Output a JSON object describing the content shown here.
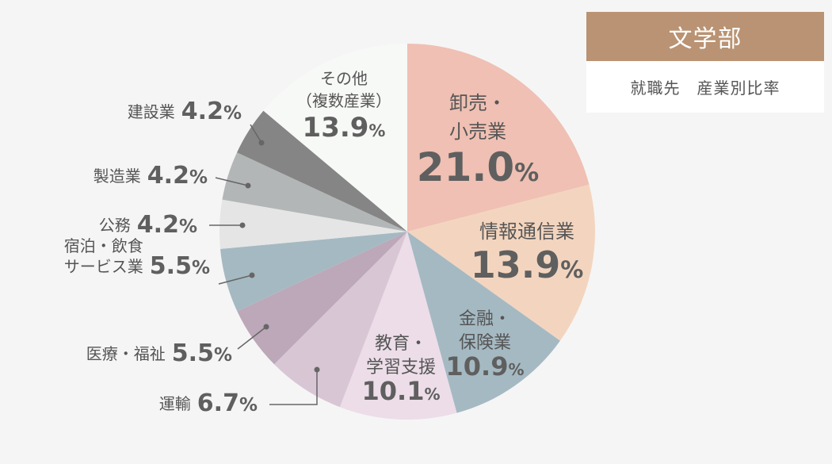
{
  "header": {
    "title": "文学部",
    "subtitle": "就職先　産業別比率"
  },
  "colors": {
    "label_text": "#555555",
    "value_text": "#5f5f5f",
    "leader_line": "#666666",
    "title_bg": "#b99373"
  },
  "chart_data": {
    "type": "pie",
    "title": "就職先　産業別比率",
    "unit": "%",
    "start_angle": 0,
    "direction": "clockwise",
    "slices": [
      {
        "label": [
          "卸売・",
          "小売業"
        ],
        "value": 21.0,
        "value_text": "21.0",
        "color": "#efc0b3",
        "placement": "inside"
      },
      {
        "label": [
          "情報通信業"
        ],
        "value": 13.9,
        "value_text": "13.9",
        "color": "#f3d5bf",
        "placement": "inside"
      },
      {
        "label": [
          "金融・",
          "保険業"
        ],
        "value": 10.9,
        "value_text": "10.9",
        "color": "#a5b9c2",
        "placement": "inside"
      },
      {
        "label": [
          "教育・",
          "学習支援"
        ],
        "value": 10.1,
        "value_text": "10.1",
        "color": "#ecdde8",
        "placement": "inside"
      },
      {
        "label": [
          "運輸"
        ],
        "value": 6.7,
        "value_text": "6.7",
        "color": "#d8c6d5",
        "placement": "outside"
      },
      {
        "label": [
          "医療・福祉"
        ],
        "value": 5.5,
        "value_text": "5.5",
        "color": "#bca8b8",
        "placement": "outside"
      },
      {
        "label": [
          "宿泊・飲食",
          "サービス業"
        ],
        "value": 5.5,
        "value_text": "5.5",
        "color": "#a5b9c2",
        "placement": "outside"
      },
      {
        "label": [
          "公務"
        ],
        "value": 4.2,
        "value_text": "4.2",
        "color": "#e5e5e5",
        "placement": "outside"
      },
      {
        "label": [
          "製造業"
        ],
        "value": 4.2,
        "value_text": "4.2",
        "color": "#b3b6b7",
        "placement": "outside"
      },
      {
        "label": [
          "建設業"
        ],
        "value": 4.2,
        "value_text": "4.2",
        "color": "#858585",
        "placement": "outside"
      },
      {
        "label": [
          "その他",
          "（複数産業）"
        ],
        "value": 13.9,
        "value_text": "13.9",
        "color": "#f7f9f6",
        "placement": "inside"
      }
    ]
  }
}
